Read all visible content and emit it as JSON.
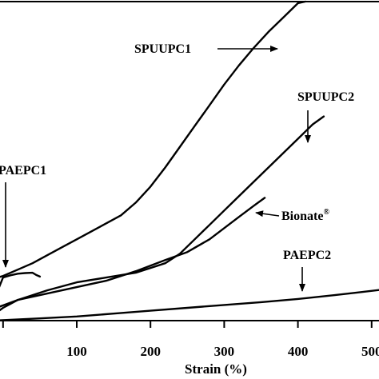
{
  "chart_data": {
    "type": "line",
    "xlabel": "Strain (%)",
    "ylabel": "",
    "xlim": [
      -15,
      510
    ],
    "ylim": [
      0,
      100
    ],
    "x_ticks": [
      100,
      200,
      300,
      400,
      500
    ],
    "x_tick_labels": [
      "100",
      "200",
      "300",
      "400",
      "500"
    ],
    "grid": false,
    "series": [
      {
        "name": "SPUUPC1",
        "x": [
          -15,
          0,
          20,
          40,
          60,
          80,
          100,
          120,
          140,
          160,
          180,
          200,
          220,
          240,
          260,
          280,
          300,
          320,
          340,
          360,
          380,
          400,
          410
        ],
        "y": [
          13,
          14,
          16,
          18,
          20.5,
          23,
          25.5,
          28,
          30.5,
          33,
          37,
          42,
          48,
          54.5,
          61,
          67.5,
          74,
          80,
          85.5,
          90.5,
          95,
          99.5,
          100
        ]
      },
      {
        "name": "SPUUPC2",
        "x": [
          -15,
          20,
          60,
          100,
          140,
          180,
          220,
          240,
          260,
          280,
          300,
          320,
          340,
          360,
          380,
          400,
          420,
          435
        ],
        "y": [
          3.5,
          6.5,
          9.5,
          12,
          13.5,
          15,
          18,
          21,
          25.5,
          30,
          34.5,
          39,
          43.5,
          48,
          52.5,
          57,
          61.5,
          64
        ]
      },
      {
        "name": "Bionate®",
        "x": [
          -15,
          0,
          20,
          60,
          100,
          140,
          180,
          220,
          250,
          280,
          300,
          320,
          340,
          355
        ],
        "y": [
          1.5,
          4,
          6.5,
          8.5,
          10.5,
          12.5,
          15.5,
          19,
          21.5,
          25.5,
          29,
          32.5,
          36,
          38.5
        ]
      },
      {
        "name": "PAEPC2",
        "x": [
          -15,
          50,
          100,
          150,
          200,
          250,
          300,
          350,
          400,
          450,
          480,
          510
        ],
        "y": [
          0,
          0.7,
          1.3,
          2.2,
          3.1,
          4,
          4.9,
          5.8,
          6.8,
          8,
          8.8,
          9.6
        ]
      },
      {
        "name": "PAEPC1",
        "x": [
          -15,
          0,
          10,
          20,
          30,
          40,
          45,
          50
        ],
        "y": [
          5,
          13.5,
          14.2,
          14.7,
          14.9,
          15,
          14.3,
          13.8
        ]
      }
    ],
    "annotations": [
      {
        "label": "SPUUPC1",
        "sup": ""
      },
      {
        "label": "SPUUPC2",
        "sup": ""
      },
      {
        "label": "Bionate",
        "sup": "®"
      },
      {
        "label": "PAEPC2",
        "sup": ""
      },
      {
        "label": "PAEPC1",
        "sup": ""
      }
    ]
  }
}
